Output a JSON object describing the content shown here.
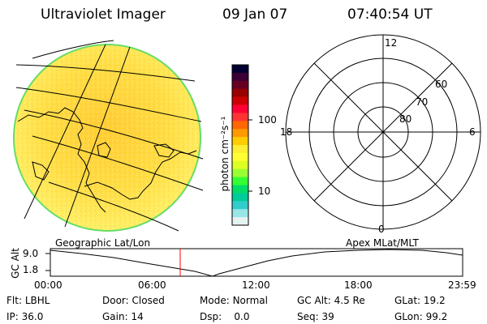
{
  "header": {
    "instrument": "Ultraviolet Imager",
    "date": "09 Jan 07",
    "time": "07:40:54 UT"
  },
  "colorbar": {
    "unit_label": "photon cm⁻²s⁻¹",
    "ticks": [
      "100",
      "10"
    ],
    "colors": [
      "#000033",
      "#3a0033",
      "#660022",
      "#990000",
      "#cc0000",
      "#ff0033",
      "#ff3333",
      "#ff6600",
      "#ff9900",
      "#ffcc00",
      "#ffee33",
      "#ffff33",
      "#ddff22",
      "#99ff33",
      "#33ff33",
      "#00dd66",
      "#00cc99",
      "#33cccc",
      "#99e6e6",
      "#e6f2f2"
    ]
  },
  "polar_plot": {
    "mlt_labels": [
      "12",
      "18",
      "6",
      "0"
    ],
    "mlat_labels": [
      "60",
      "70",
      "80"
    ]
  },
  "map_labels": {
    "left": "Geographic Lat/Lon",
    "right": "Apex  MLat/MLT"
  },
  "timeline": {
    "axis_label": "GC Alt",
    "y_ticks": [
      "9.0",
      "1.8"
    ],
    "x_ticks": [
      "00:00",
      "06:00",
      "12:00",
      "18:00",
      "23:59"
    ],
    "current_marker": "07:40",
    "accent_color": "#ff0000"
  },
  "status": {
    "flt_label": "Flt:",
    "flt_value": "LBHL",
    "ip_label": "IP:",
    "ip_value": "36.0",
    "door_label": "Door:",
    "door_value": "Closed",
    "gain_label": "Gain:",
    "gain_value": "14",
    "mode_label": "Mode:",
    "mode_value": "Normal",
    "dsp_label": "Dsp:",
    "dsp_value": "0.0",
    "gcalt_label": "GC Alt:",
    "gcalt_value": "4.5 Re",
    "seq_label": "Seq:",
    "seq_value": "39",
    "glat_label": "GLat:",
    "glat_value": "19.2",
    "glon_label": "GLon:",
    "glon_value": "99.2"
  }
}
